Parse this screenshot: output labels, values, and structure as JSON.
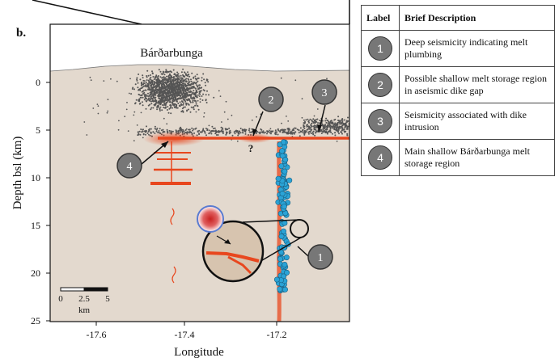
{
  "panel_label": "b.",
  "volcano_label": "Bárðarbunga",
  "question_mark": "?",
  "axes": {
    "xlabel": "Longitude",
    "ylabel": "Depth bsl (km)",
    "x_ticks": [
      "-17.6",
      "-17.4",
      "-17.2"
    ],
    "y_ticks": [
      "0",
      "5",
      "10",
      "15",
      "20",
      "25"
    ]
  },
  "scale_bar": {
    "ticks": [
      "0",
      "2.5",
      "5"
    ],
    "unit": "km"
  },
  "callouts": [
    "1",
    "2",
    "3",
    "4"
  ],
  "legend": {
    "headers": {
      "label": "Label",
      "description": "Brief Description"
    },
    "rows": [
      {
        "label": "1",
        "description": "Deep seismicity indicating melt plumbing"
      },
      {
        "label": "2",
        "description": "Possible shallow melt storage region in aseismic dike gap"
      },
      {
        "label": "3",
        "description": "Seismicity associated with dike intrusion"
      },
      {
        "label": "4",
        "description": "Main shallow Bárðarbunga melt storage region"
      }
    ]
  },
  "colors": {
    "crust": "#e3d9ce",
    "seismicity": "#555555",
    "melt": "#e8471e",
    "deep_events": "#2aa3d6",
    "callout_fill": "#777777"
  }
}
